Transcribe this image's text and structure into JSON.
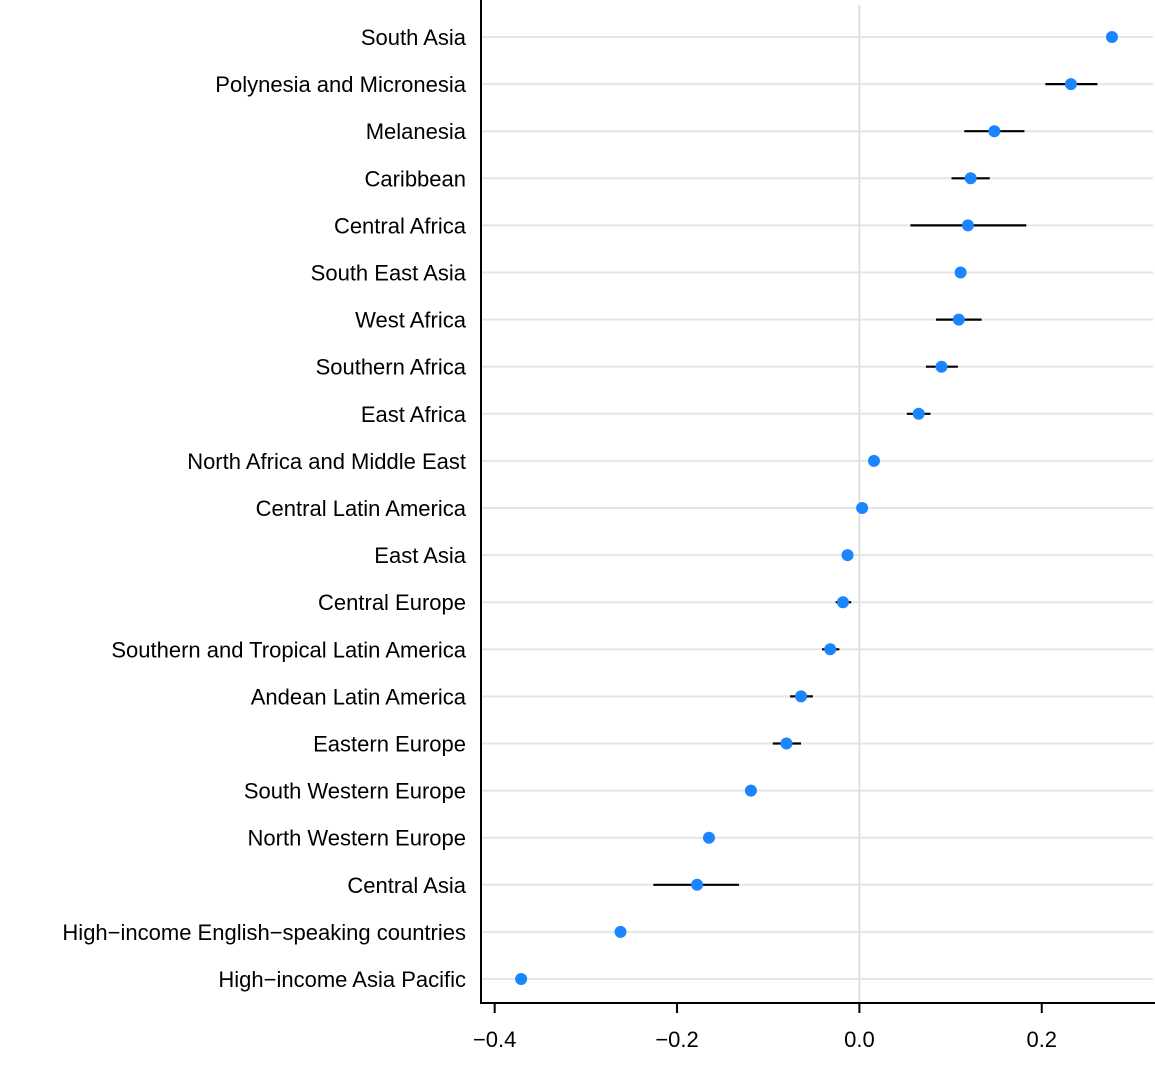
{
  "chart_data": {
    "type": "scatter",
    "subtype": "dot-and-whisker",
    "title": "",
    "xlabel": "",
    "ylabel": "",
    "xlim": [
      -0.415,
      0.322
    ],
    "x_ticks": [
      -0.4,
      -0.2,
      0.0,
      0.2
    ],
    "x_tick_labels": [
      "−0.4",
      "−0.2",
      "0.0",
      "0.2"
    ],
    "reference_line": 0.0,
    "grid": "horizontal",
    "point_color": "#1a85ff",
    "categories": [
      "South Asia",
      "Polynesia and Micronesia",
      "Melanesia",
      "Caribbean",
      "Central Africa",
      "South East Asia",
      "West Africa",
      "Southern Africa",
      "East Africa",
      "North Africa and Middle East",
      "Central Latin America",
      "East Asia",
      "Central Europe",
      "Southern and Tropical Latin America",
      "Andean Latin America",
      "Eastern Europe",
      "South Western Europe",
      "North Western Europe",
      "Central Asia",
      "High−income English−speaking countries",
      "High−income Asia Pacific"
    ],
    "values": [
      0.277,
      0.232,
      0.148,
      0.122,
      0.119,
      0.111,
      0.109,
      0.09,
      0.065,
      0.016,
      0.003,
      -0.013,
      -0.018,
      -0.032,
      -0.064,
      -0.08,
      -0.119,
      -0.165,
      -0.178,
      -0.262,
      -0.371
    ],
    "lower": [
      0.277,
      0.204,
      0.115,
      0.101,
      0.056,
      0.111,
      0.084,
      0.073,
      0.052,
      0.016,
      -0.002,
      -0.013,
      -0.026,
      -0.041,
      -0.076,
      -0.095,
      -0.119,
      -0.165,
      -0.226,
      -0.262,
      -0.371
    ],
    "upper": [
      0.277,
      0.261,
      0.181,
      0.143,
      0.183,
      0.111,
      0.134,
      0.108,
      0.078,
      0.016,
      0.009,
      -0.013,
      -0.009,
      -0.022,
      -0.051,
      -0.064,
      -0.119,
      -0.165,
      -0.132,
      -0.262,
      -0.371
    ]
  }
}
